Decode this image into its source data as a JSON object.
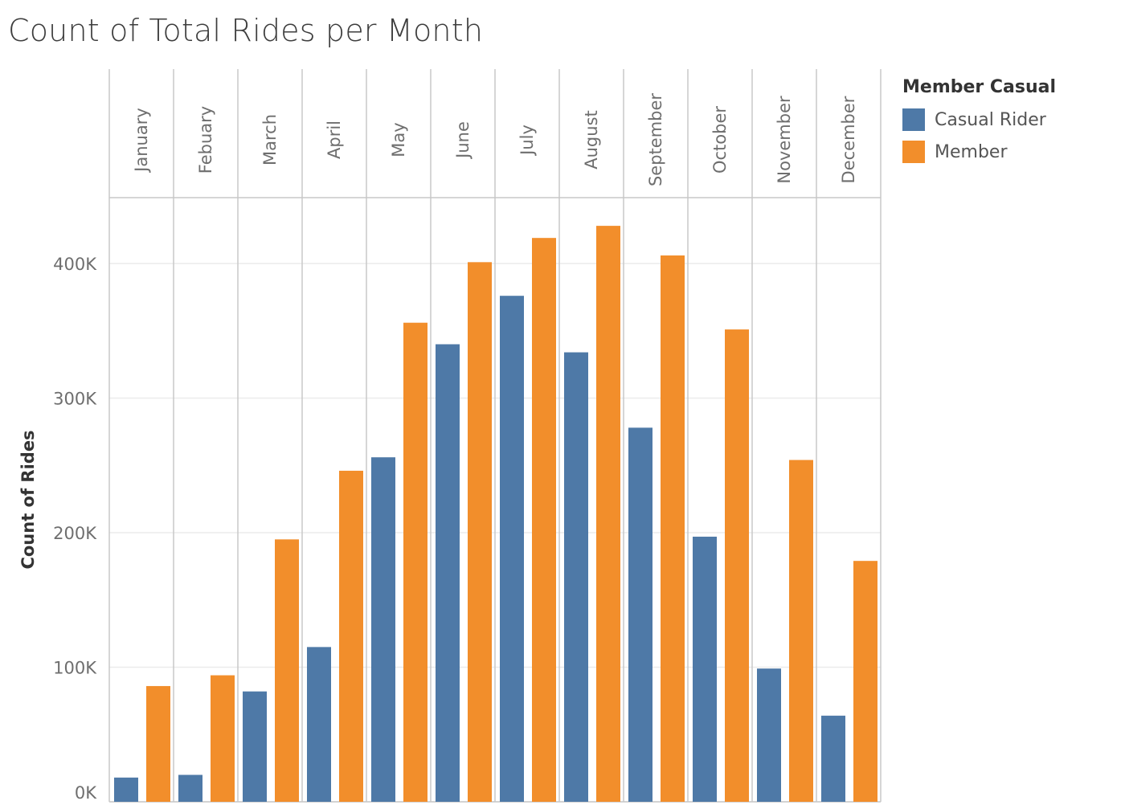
{
  "colors": {
    "casual": "#4e79a7",
    "member": "#f28e2b",
    "gridline": "#ececec",
    "divider": "#c8c8c8",
    "axis_text": "#6e6e6e"
  },
  "legend": {
    "title": "Member Casual",
    "items": [
      {
        "label": "Casual Rider",
        "color": "#4e79a7"
      },
      {
        "label": "Member",
        "color": "#f28e2b"
      }
    ]
  },
  "chart_data": {
    "type": "bar",
    "title": "Count of Total Rides per Month",
    "xlabel": "",
    "ylabel": "Count of Rides",
    "categories": [
      "January",
      "Febuary",
      "March",
      "April",
      "May",
      "June",
      "July",
      "August",
      "September",
      "October",
      "November",
      "December"
    ],
    "series": [
      {
        "name": "Casual Rider",
        "values": [
          18000,
          20000,
          82000,
          115000,
          256000,
          340000,
          376000,
          334000,
          278000,
          197000,
          99000,
          64000
        ]
      },
      {
        "name": "Member",
        "values": [
          86000,
          94000,
          195000,
          246000,
          356000,
          401000,
          419000,
          428000,
          406000,
          351000,
          254000,
          179000
        ]
      }
    ],
    "yticks": [
      0,
      100000,
      200000,
      300000,
      400000
    ],
    "ytick_labels": [
      "0K",
      "100K",
      "200K",
      "300K",
      "400K"
    ],
    "ylim": [
      0,
      450000
    ],
    "grid": true,
    "legend_position": "right"
  }
}
